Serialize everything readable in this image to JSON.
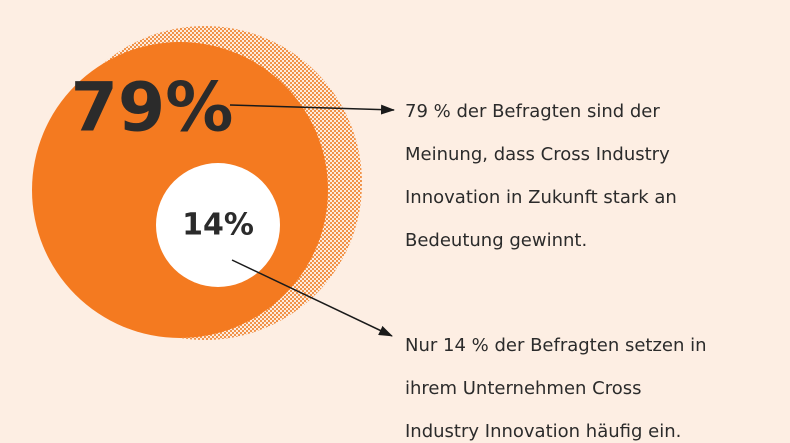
{
  "callouts": [
    {
      "figure": "79%",
      "caption": [
        "79 % der Befragten sind der",
        "Meinung, dass Cross Industry",
        "Innovation in Zukunft stark an",
        "Bedeutung gewinnt."
      ]
    },
    {
      "figure": "14%",
      "caption": [
        "Nur 14 % der Befragten setzen in",
        "ihrem Unternehmen Cross",
        "Industry Innovation häufig ein."
      ]
    }
  ]
}
